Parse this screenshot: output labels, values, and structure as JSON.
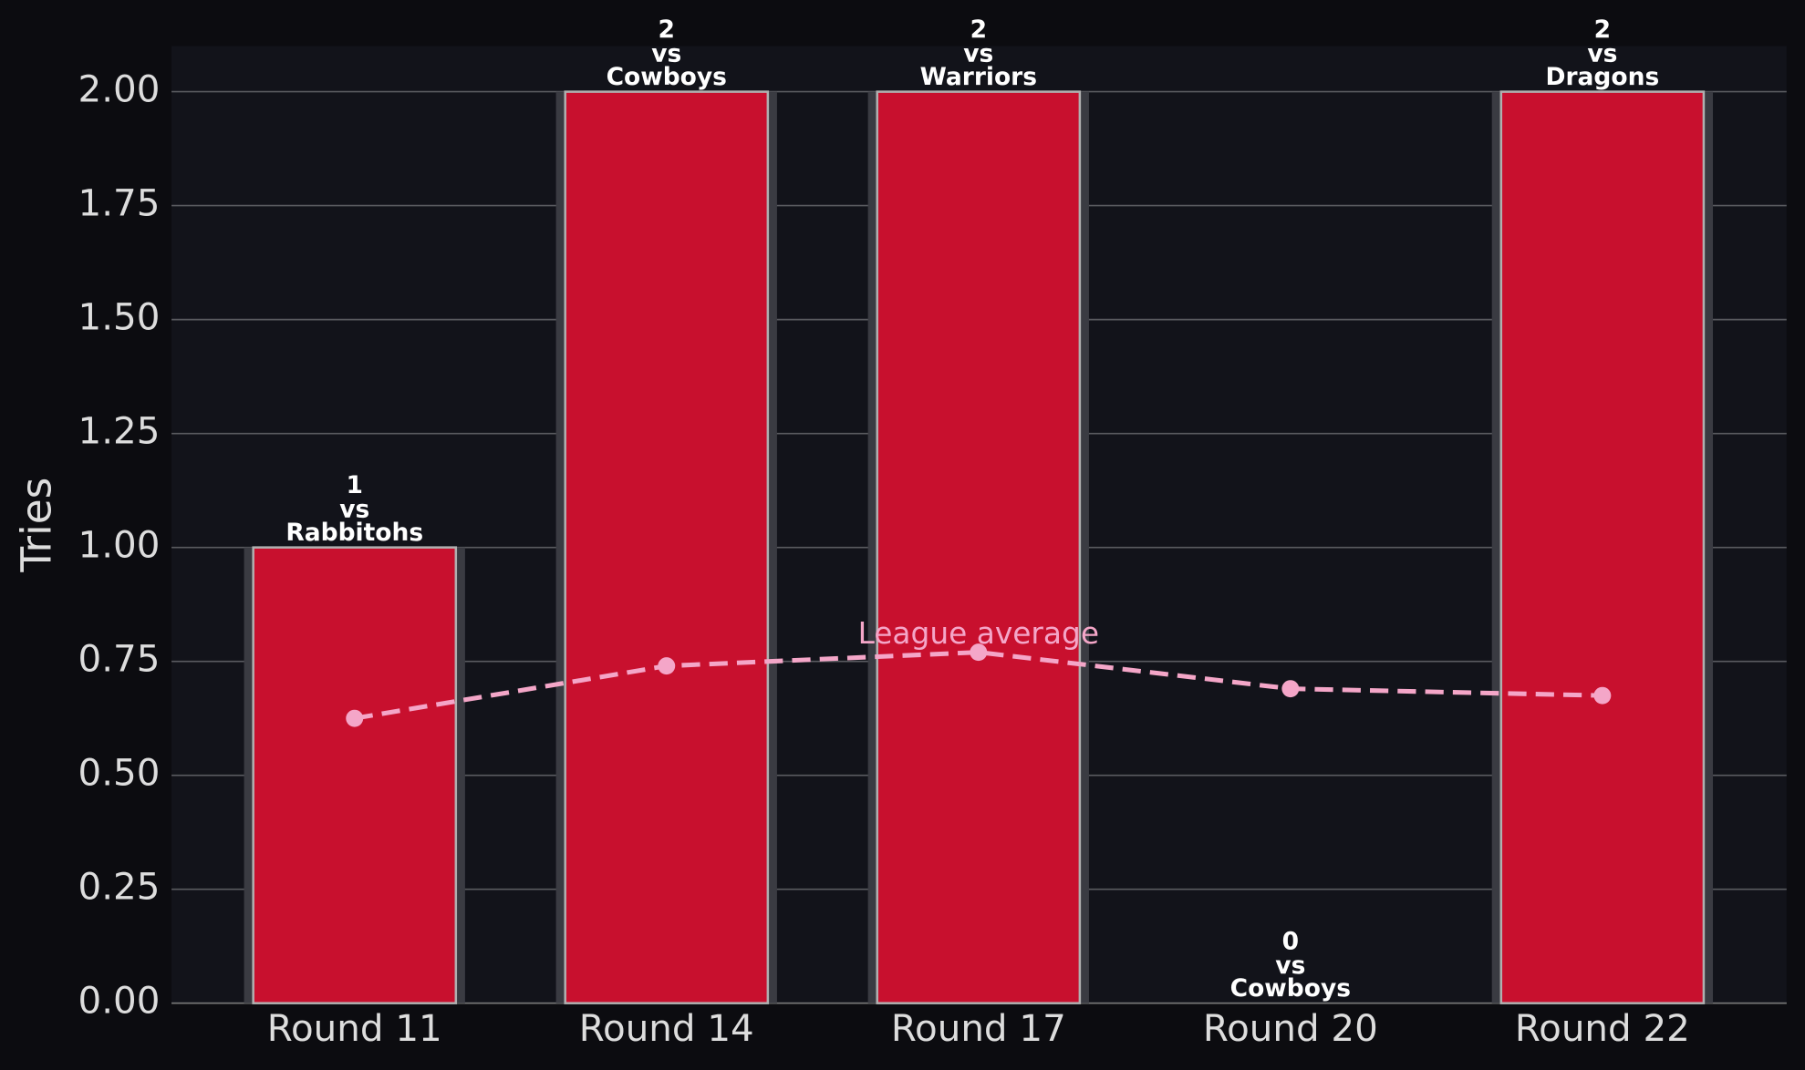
{
  "chart_data": {
    "type": "bar",
    "y_label": "Tries",
    "categories": [
      "Round 11",
      "Round 14",
      "Round 17",
      "Round 20",
      "Round 22"
    ],
    "values": [
      1,
      2,
      2,
      0,
      2
    ],
    "opponent_labels": [
      [
        "vs",
        "Rabbitohs"
      ],
      [
        "vs",
        "Cowboys"
      ],
      [
        "vs",
        "Warriors"
      ],
      [
        "vs",
        "Cowboys"
      ],
      [
        "vs",
        "Dragons"
      ]
    ],
    "color": "#c8102e",
    "ylim": [
      0,
      2.1
    ],
    "yticks": [
      {
        "value": 0,
        "label": "0.00"
      },
      {
        "value": 0.25,
        "label": "0.25"
      },
      {
        "value": 0.5,
        "label": "0.50"
      },
      {
        "value": 0.75,
        "label": "0.75"
      },
      {
        "value": 1,
        "label": "1.00"
      },
      {
        "value": 1.25,
        "label": "1.25"
      },
      {
        "value": 1.5,
        "label": "1.50"
      },
      {
        "value": 1.75,
        "label": "1.75"
      },
      {
        "value": 2,
        "label": "2.00"
      }
    ],
    "grid": true,
    "line_series": {
      "type": "line",
      "name": "League average",
      "color": "#f4a6c8",
      "values": [
        0.625,
        0.74,
        0.77,
        0.69,
        0.675
      ],
      "label_index": 2
    }
  }
}
